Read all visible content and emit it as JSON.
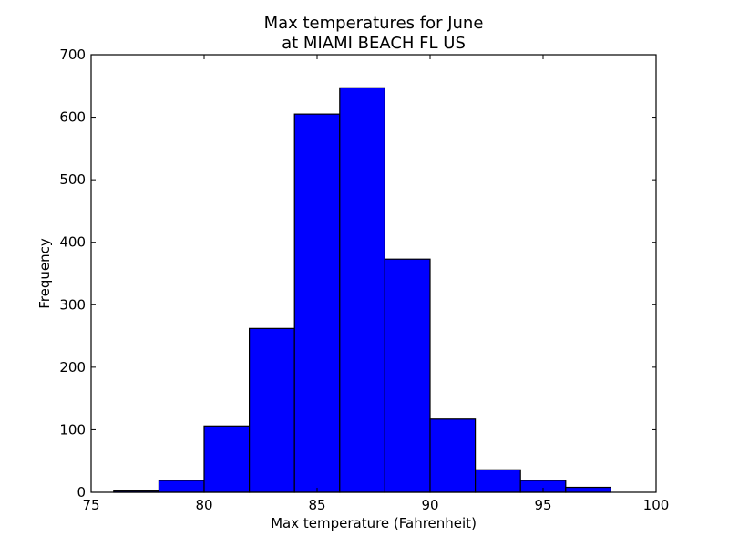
{
  "chart_data": {
    "type": "bar",
    "title": [
      "Max temperatures for June",
      "at MIAMI BEACH FL US"
    ],
    "xlabel": "Max temperature (Fahrenheit)",
    "ylabel": "Frequency",
    "xlim": [
      75,
      100
    ],
    "ylim": [
      0,
      700
    ],
    "x_ticks": [
      75,
      80,
      85,
      90,
      95,
      100
    ],
    "y_ticks": [
      0,
      100,
      200,
      300,
      400,
      500,
      600,
      700
    ],
    "bins": [
      {
        "x0": 76,
        "x1": 78,
        "count": 2
      },
      {
        "x0": 78,
        "x1": 80,
        "count": 19
      },
      {
        "x0": 80,
        "x1": 82,
        "count": 106
      },
      {
        "x0": 82,
        "x1": 84,
        "count": 262
      },
      {
        "x0": 84,
        "x1": 86,
        "count": 605
      },
      {
        "x0": 86,
        "x1": 88,
        "count": 647
      },
      {
        "x0": 88,
        "x1": 90,
        "count": 373
      },
      {
        "x0": 90,
        "x1": 92,
        "count": 117
      },
      {
        "x0": 92,
        "x1": 94,
        "count": 36
      },
      {
        "x0": 94,
        "x1": 96,
        "count": 19
      },
      {
        "x0": 96,
        "x1": 98,
        "count": 8
      }
    ],
    "bar_color": "#0000ff",
    "grid": false
  }
}
